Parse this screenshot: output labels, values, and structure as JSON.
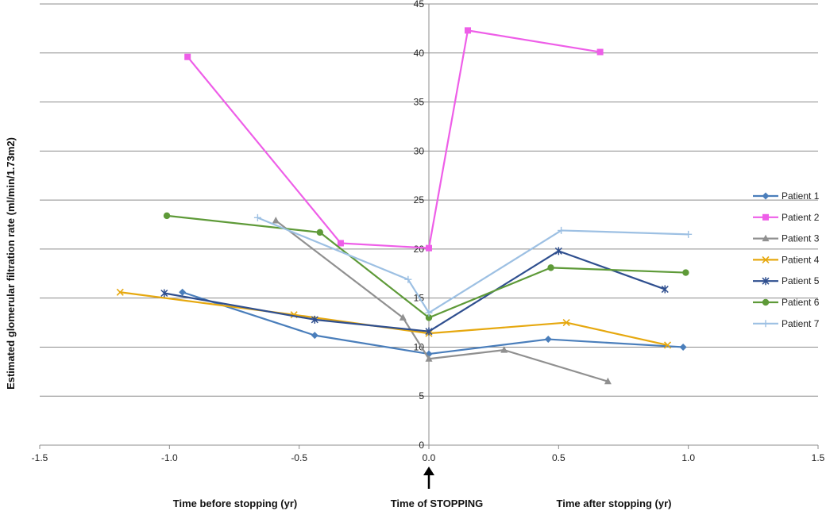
{
  "chart_data": {
    "type": "line",
    "title": "",
    "xlabel": "",
    "ylabel": "Estimated glomerular filtration rate (ml/min/1.73m2)",
    "xlim": [
      -1.5,
      1.5
    ],
    "ylim": [
      0,
      45
    ],
    "x_ticks": [
      "-1.5",
      "-1.0",
      "-0.5",
      "0.0",
      "0.5",
      "1.0",
      "1.5"
    ],
    "y_ticks": [
      "0",
      "5",
      "10",
      "15",
      "20",
      "25",
      "30",
      "35",
      "40",
      "45"
    ],
    "grid": "horizontal",
    "legend_position": "right",
    "series": [
      {
        "name": "Patient 1",
        "color": "#4a7ebb",
        "marker": "diamond",
        "points": [
          [
            -0.95,
            15.6
          ],
          [
            -0.44,
            11.2
          ],
          [
            0.0,
            9.3
          ],
          [
            0.46,
            10.8
          ],
          [
            0.98,
            10.0
          ]
        ]
      },
      {
        "name": "Patient 2",
        "color": "#ee5ee8",
        "marker": "square",
        "points": [
          [
            -0.93,
            39.6
          ],
          [
            -0.34,
            20.6
          ],
          [
            0.0,
            20.1
          ],
          [
            0.15,
            42.3
          ],
          [
            0.66,
            40.1
          ]
        ]
      },
      {
        "name": "Patient 3",
        "color": "#909090",
        "marker": "triangle",
        "points": [
          [
            -0.59,
            22.9
          ],
          [
            -0.1,
            13.0
          ],
          [
            0.0,
            8.8
          ],
          [
            0.29,
            9.7
          ],
          [
            0.69,
            6.5
          ]
        ]
      },
      {
        "name": "Patient 4",
        "color": "#e6a80f",
        "marker": "x",
        "points": [
          [
            -1.19,
            15.6
          ],
          [
            -0.52,
            13.3
          ],
          [
            0.0,
            11.4
          ],
          [
            0.53,
            12.5
          ],
          [
            0.92,
            10.2
          ]
        ]
      },
      {
        "name": "Patient 5",
        "color": "#2f4f8f",
        "marker": "star",
        "points": [
          [
            -1.02,
            15.5
          ],
          [
            -0.44,
            12.8
          ],
          [
            0.0,
            11.6
          ],
          [
            0.5,
            19.8
          ],
          [
            0.91,
            15.9
          ]
        ]
      },
      {
        "name": "Patient 6",
        "color": "#5e9a38",
        "marker": "circle",
        "points": [
          [
            -1.01,
            23.4
          ],
          [
            -0.42,
            21.7
          ],
          [
            0.0,
            13.0
          ],
          [
            0.47,
            18.1
          ],
          [
            0.99,
            17.6
          ]
        ]
      },
      {
        "name": "Patient 7",
        "color": "#9dc0e3",
        "marker": "plus",
        "points": [
          [
            -0.66,
            23.2
          ],
          [
            -0.08,
            16.9
          ],
          [
            0.0,
            13.5
          ],
          [
            0.51,
            21.9
          ],
          [
            1.0,
            21.5
          ]
        ]
      }
    ],
    "annotations": {
      "before": "Time before stopping (yr)",
      "stop": "Time of STOPPING",
      "after": "Time after stopping (yr)"
    }
  }
}
